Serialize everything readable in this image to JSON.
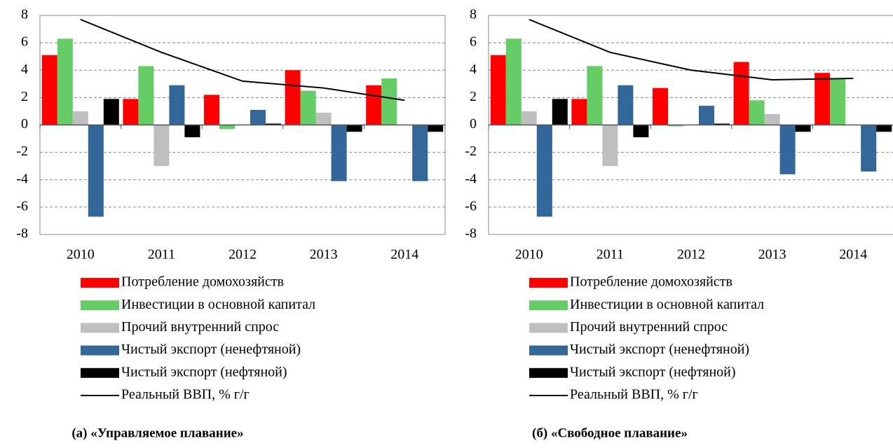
{
  "chart_data": [
    {
      "type": "bar",
      "title": "(а) «Управляемое плавание»",
      "categories": [
        "2010",
        "2011",
        "2012",
        "2013",
        "2014"
      ],
      "ylim": [
        -8,
        8
      ],
      "yticks": [
        -8,
        -6,
        -4,
        -2,
        0,
        2,
        4,
        6,
        8
      ],
      "grid": true,
      "series": [
        {
          "name": "Потребление домохозяйств",
          "color": "#ff0000",
          "values": [
            5.1,
            1.9,
            2.2,
            4.0,
            2.9
          ]
        },
        {
          "name": "Инвестиции в основной капитал",
          "color": "#66cc66",
          "values": [
            6.3,
            4.3,
            -0.3,
            2.5,
            3.4
          ]
        },
        {
          "name": "Прочий внутренний спрос",
          "color": "#bfbfbf",
          "values": [
            1.0,
            -3.0,
            null,
            0.9,
            null
          ]
        },
        {
          "name": "Чистый экспорт (ненефтяной)",
          "color": "#336699",
          "values": [
            -6.7,
            2.9,
            1.1,
            -4.1,
            -4.1
          ]
        },
        {
          "name": "Чистый экспорт (нефтяной)",
          "color": "#000000",
          "values": [
            1.9,
            -0.9,
            0.1,
            -0.5,
            -0.5
          ]
        },
        {
          "name": "Реальный ВВП, % г/г",
          "color": "#000000",
          "type": "line",
          "values": [
            7.7,
            5.3,
            3.2,
            2.7,
            1.8
          ]
        }
      ]
    },
    {
      "type": "bar",
      "title": "(б) «Свободное плавание»",
      "categories": [
        "2010",
        "2011",
        "2012",
        "2013",
        "2014"
      ],
      "ylim": [
        -8,
        8
      ],
      "yticks": [
        -8,
        -6,
        -4,
        -2,
        0,
        2,
        4,
        6,
        8
      ],
      "grid": true,
      "series": [
        {
          "name": "Потребление домохозяйств",
          "color": "#ff0000",
          "values": [
            5.1,
            1.9,
            2.7,
            4.6,
            3.8
          ]
        },
        {
          "name": "Инвестиции в основной капитал",
          "color": "#66cc66",
          "values": [
            6.3,
            4.3,
            -0.1,
            1.8,
            3.4
          ]
        },
        {
          "name": "Прочий внутренний спрос",
          "color": "#bfbfbf",
          "values": [
            1.0,
            -3.0,
            null,
            0.8,
            null
          ]
        },
        {
          "name": "Чистый экспорт (ненефтяной)",
          "color": "#336699",
          "values": [
            -6.7,
            2.9,
            1.4,
            -3.6,
            -3.4
          ]
        },
        {
          "name": "Чистый экспорт (нефтяной)",
          "color": "#000000",
          "values": [
            1.9,
            -0.9,
            0.1,
            -0.5,
            -0.5
          ]
        },
        {
          "name": "Реальный ВВП, % г/г",
          "color": "#000000",
          "type": "line",
          "values": [
            7.7,
            5.3,
            4.0,
            3.3,
            3.4
          ]
        }
      ]
    }
  ]
}
